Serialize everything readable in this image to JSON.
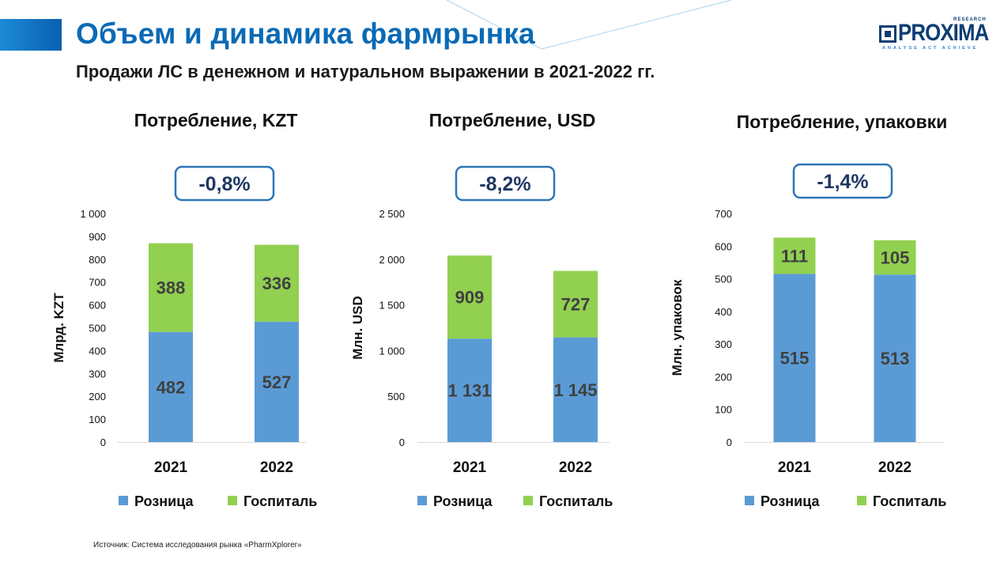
{
  "header": {
    "title": "Объем и динамика фармрынка",
    "subtitle": "Продажи ЛС в денежном и натуральном выражении в 2021-2022 гг.",
    "logo_text": "PROXIMA",
    "logo_research": "RESEARCH",
    "logo_tagline": "ANALYSE ACT ACHIEVE"
  },
  "source": "Источник: Система исследования рынка «PharmXplorer»",
  "colors": {
    "title": "#0a6ab5",
    "retail": "#5b9bd5",
    "hospital": "#92d050",
    "badge_border": "#2e75b6",
    "badge_text": "#1f3864",
    "value_text": "#404040"
  },
  "chart_data": [
    {
      "type": "bar",
      "stacked": true,
      "title": "Потребление, KZT",
      "change": "-0,8%",
      "ylabel": "Млрд. KZT",
      "ylim": [
        0,
        1000
      ],
      "yticks": [
        "0",
        "100",
        "200",
        "300",
        "400",
        "500",
        "600",
        "700",
        "800",
        "900",
        "1 000"
      ],
      "categories": [
        "2021",
        "2022"
      ],
      "series": [
        {
          "name": "Розница",
          "values": [
            482,
            527
          ],
          "labels": [
            "482",
            "527"
          ]
        },
        {
          "name": "Госпиталь",
          "values": [
            388,
            336
          ],
          "labels": [
            "388",
            "336"
          ]
        }
      ],
      "legend": "bottom"
    },
    {
      "type": "bar",
      "stacked": true,
      "title": "Потребление, USD",
      "change": "-8,2%",
      "ylabel": "Млн. USD",
      "ylim": [
        0,
        2500
      ],
      "yticks": [
        "0",
        "500",
        "1 000",
        "1 500",
        "2 000",
        "2 500"
      ],
      "categories": [
        "2021",
        "2022"
      ],
      "series": [
        {
          "name": "Розница",
          "values": [
            1131,
            1145
          ],
          "labels": [
            "1 131",
            "1 145"
          ]
        },
        {
          "name": "Госпиталь",
          "values": [
            909,
            727
          ],
          "labels": [
            "909",
            "727"
          ]
        }
      ],
      "legend": "bottom"
    },
    {
      "type": "bar",
      "stacked": true,
      "title": "Потребление, упаковки",
      "change": "-1,4%",
      "ylabel": "Млн. упаковок",
      "ylim": [
        0,
        700
      ],
      "yticks": [
        "0",
        "100",
        "200",
        "300",
        "400",
        "500",
        "600",
        "700"
      ],
      "categories": [
        "2021",
        "2022"
      ],
      "series": [
        {
          "name": "Розница",
          "values": [
            515,
            513
          ],
          "labels": [
            "515",
            "513"
          ]
        },
        {
          "name": "Госпиталь",
          "values": [
            111,
            105
          ],
          "labels": [
            "111",
            "105"
          ]
        }
      ],
      "legend": "bottom"
    }
  ]
}
